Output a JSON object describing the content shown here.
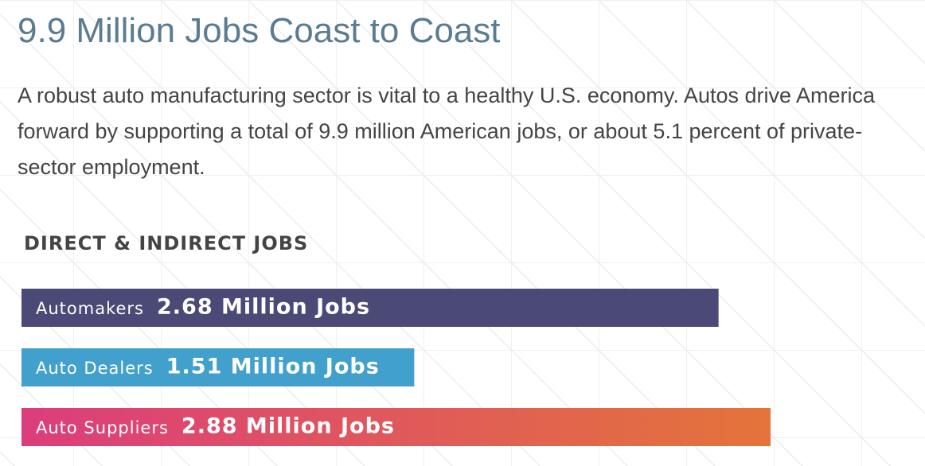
{
  "chart_data": {
    "type": "bar",
    "orientation": "horizontal",
    "title": "9.9 Million Jobs Coast to Coast",
    "subtitle": "A robust auto manufacturing sector is vital to a healthy U.S. economy. Autos drive America forward by supporting a total of 9.9 million American jobs, or about 5.1 percent of private-sector employment.",
    "chart_title": "DIRECT & INDIRECT JOBS",
    "categories": [
      "Automakers",
      "Auto Dealers",
      "Auto Suppliers"
    ],
    "values": [
      2.68,
      1.51,
      2.88
    ],
    "value_labels": [
      "2.68 Million Jobs",
      "1.51 Million Jobs",
      "2.88 Million Jobs"
    ],
    "colors": [
      "#4b4a77",
      "#42a0cc",
      "#dc3d7c"
    ]
  }
}
